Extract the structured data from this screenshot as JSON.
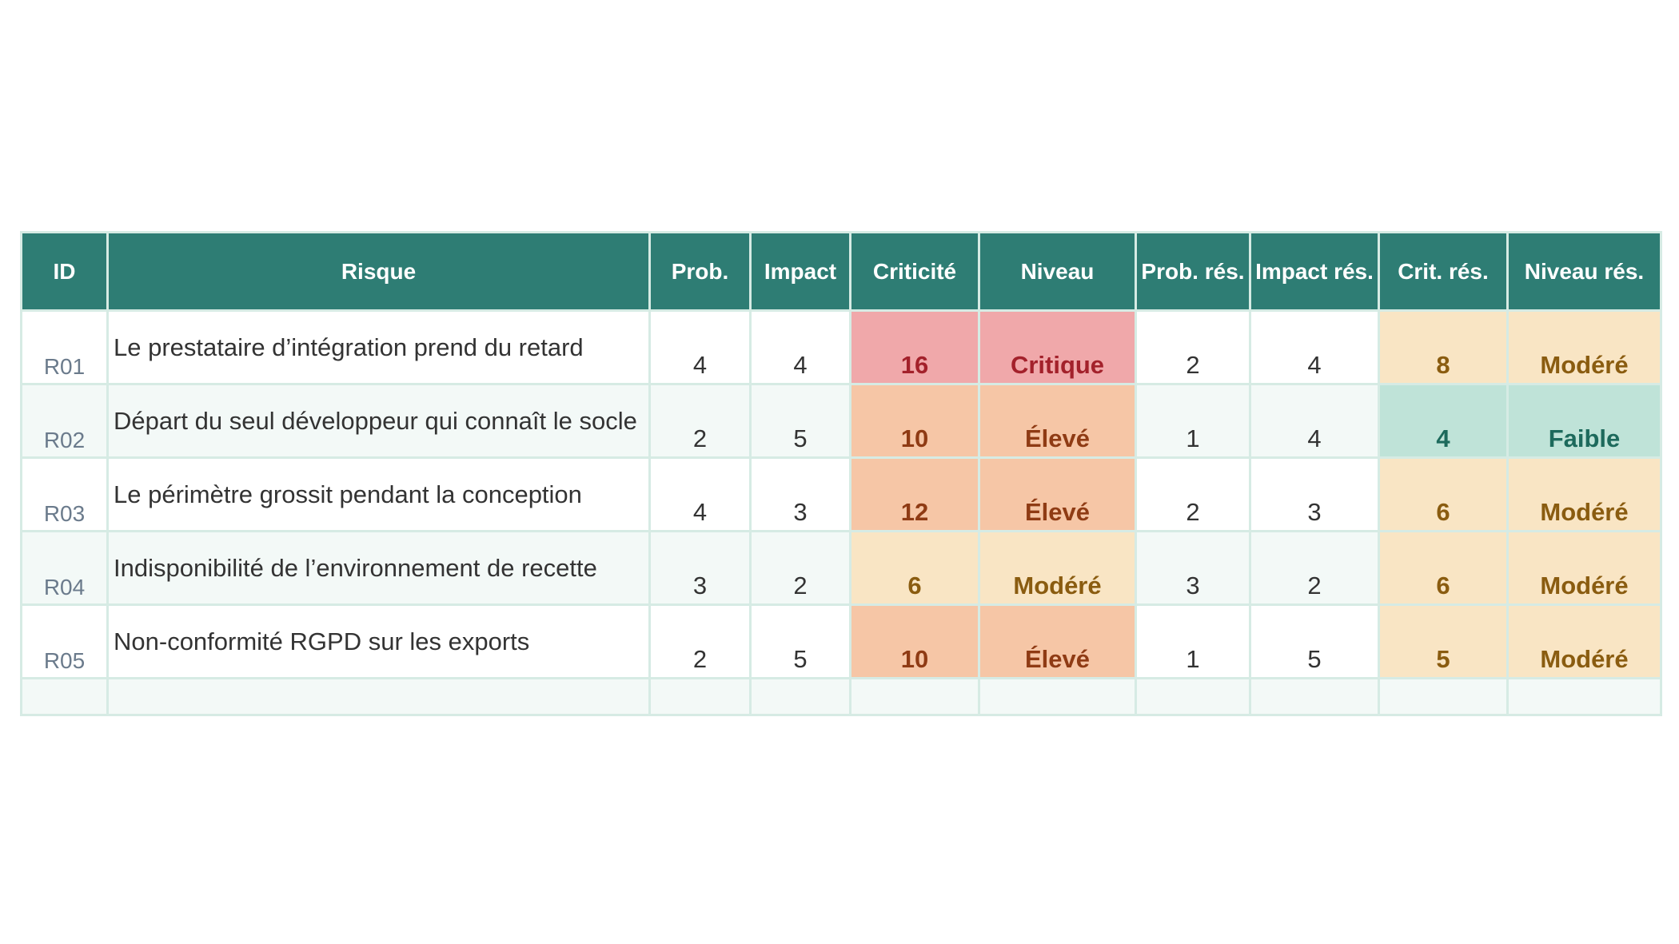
{
  "table": {
    "headers": [
      "ID",
      "Risque",
      "Prob.",
      "Impact",
      "Criticité",
      "Niveau",
      "Prob. rés.",
      "Impact rés.",
      "Crit. rés.",
      "Niveau rés."
    ],
    "rows": [
      {
        "id": "R01",
        "risque": "Le prestataire d’intégration prend du retard",
        "prob": "4",
        "impact": "4",
        "criticite": "16",
        "niveau": "Critique",
        "prob_res": "2",
        "impact_res": "4",
        "crit_res": "8",
        "niveau_res": "Modéré"
      },
      {
        "id": "R02",
        "risque": "Départ du seul développeur qui connaît le socle",
        "prob": "2",
        "impact": "5",
        "criticite": "10",
        "niveau": "Élevé",
        "prob_res": "1",
        "impact_res": "4",
        "crit_res": "4",
        "niveau_res": "Faible"
      },
      {
        "id": "R03",
        "risque": "Le périmètre grossit pendant la conception",
        "prob": "4",
        "impact": "3",
        "criticite": "12",
        "niveau": "Élevé",
        "prob_res": "2",
        "impact_res": "3",
        "crit_res": "6",
        "niveau_res": "Modéré"
      },
      {
        "id": "R04",
        "risque": "Indisponibilité de l’environnement de recette",
        "prob": "3",
        "impact": "2",
        "criticite": "6",
        "niveau": "Modéré",
        "prob_res": "3",
        "impact_res": "2",
        "crit_res": "6",
        "niveau_res": "Modéré"
      },
      {
        "id": "R05",
        "risque": "Non-conformité RGPD sur les exports",
        "prob": "2",
        "impact": "5",
        "criticite": "10",
        "niveau": "Élevé",
        "prob_res": "1",
        "impact_res": "5",
        "crit_res": "5",
        "niveau_res": "Modéré"
      }
    ]
  },
  "level_colors": {
    "Critique": {
      "bg": "#f0a8aa",
      "fg": "#a3212b"
    },
    "Élevé": {
      "bg": "#f6c6a6",
      "fg": "#8f3b14"
    },
    "Modéré": {
      "bg": "#f9e5c4",
      "fg": "#8a5c10"
    },
    "Faible": {
      "bg": "#bfe3d8",
      "fg": "#1d6a5c"
    }
  },
  "header_color": "#2e7d74"
}
